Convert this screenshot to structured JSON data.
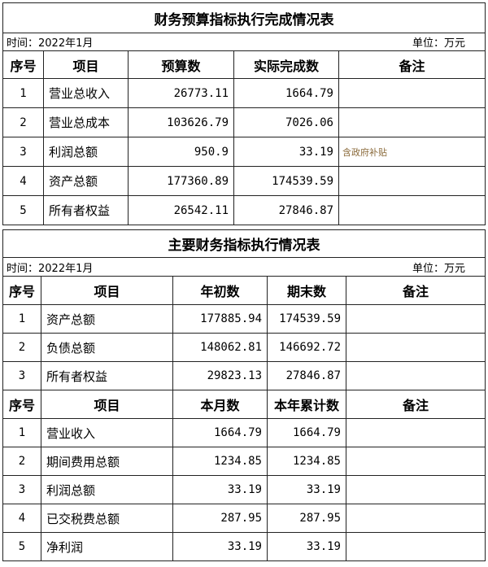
{
  "table1": {
    "title": "财务预算指标执行完成情况表",
    "time": "时间：2022年1月",
    "unit": "单位：万元",
    "headers": [
      "序号",
      "项目",
      "预算数",
      "实际完成数",
      "备注"
    ],
    "rows": [
      [
        "1",
        "营业总收入",
        "26773.11",
        "1664.79",
        ""
      ],
      [
        "2",
        "营业总成本",
        "103626.79",
        "7026.06",
        ""
      ],
      [
        "3",
        "利润总额",
        "950.9",
        "33.19",
        "含政府补贴"
      ],
      [
        "4",
        "资产总额",
        "177360.89",
        "174539.59",
        ""
      ],
      [
        "5",
        "所有者权益",
        "26542.11",
        "27846.87",
        ""
      ]
    ]
  },
  "table2": {
    "title": "主要财务指标执行情况表",
    "time": "时间：2022年1月",
    "unit": "单位：万元",
    "headers": [
      "序号",
      "项目",
      "年初数",
      "期末数",
      "备注"
    ],
    "rows": [
      [
        "1",
        "资产总额",
        "177885.94",
        "174539.59",
        ""
      ],
      [
        "2",
        "负债总额",
        "148062.81",
        "146692.72",
        ""
      ],
      [
        "3",
        "所有者权益",
        "29823.13",
        "27846.87",
        ""
      ]
    ],
    "headers2": [
      "序号",
      "项目",
      "本月数",
      "本年累计数",
      "备注"
    ],
    "rows2": [
      [
        "1",
        "营业收入",
        "1664.79",
        "1664.79",
        ""
      ],
      [
        "2",
        "期间费用总额",
        "1234.85",
        "1234.85",
        ""
      ],
      [
        "3",
        "利润总额",
        "33.19",
        "33.19",
        ""
      ],
      [
        "4",
        "已交税费总额",
        "287.95",
        "287.95",
        ""
      ],
      [
        "5",
        "净利润",
        "33.19",
        "33.19",
        ""
      ]
    ]
  }
}
